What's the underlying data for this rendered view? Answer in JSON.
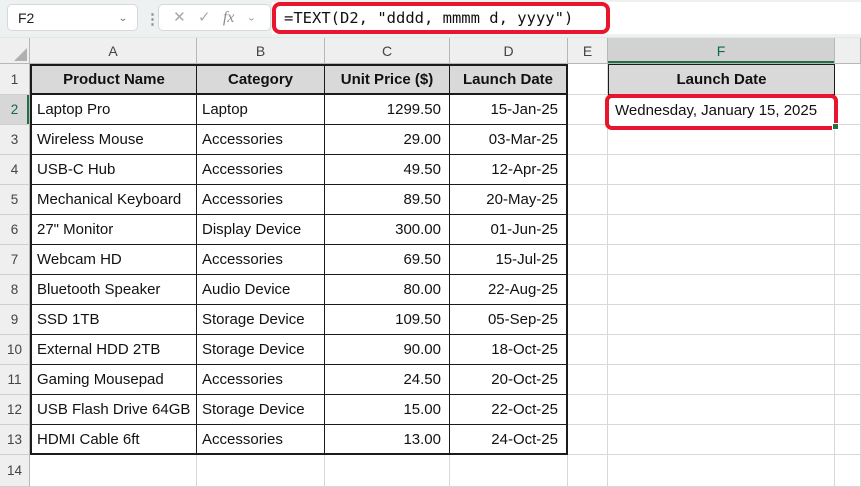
{
  "colors": {
    "annotation_red": "#e8152d",
    "selection_green": "#1f7246",
    "selected_header_text": "#0f6b43",
    "table_header_fill": "#d9d9d9"
  },
  "formula_bar": {
    "name_box_value": "F2",
    "formula": "=TEXT(D2, \"dddd, mmmm d, yyyy\")",
    "icons": {
      "name_dropdown": "⌄",
      "kebab": "⋮",
      "cancel": "✕",
      "enter": "✓",
      "fx": "fx",
      "fx_dropdown": "⌄"
    }
  },
  "sheet": {
    "column_letters": [
      "A",
      "B",
      "C",
      "D",
      "E",
      "F"
    ],
    "selected_column": "F",
    "selected_row": 2,
    "row_numbers": [
      "1",
      "2",
      "3",
      "4",
      "5",
      "6",
      "7",
      "8",
      "9",
      "10",
      "11",
      "12",
      "13",
      "14"
    ],
    "table": {
      "headers": [
        "Product Name",
        "Category",
        "Unit Price ($)",
        "Launch Date"
      ],
      "rows": [
        {
          "product": "Laptop Pro",
          "category": "Laptop",
          "price": "1299.50",
          "date": "15-Jan-25"
        },
        {
          "product": "Wireless Mouse",
          "category": "Accessories",
          "price": "29.00",
          "date": "03-Mar-25"
        },
        {
          "product": "USB-C Hub",
          "category": "Accessories",
          "price": "49.50",
          "date": "12-Apr-25"
        },
        {
          "product": "Mechanical Keyboard",
          "category": "Accessories",
          "price": "89.50",
          "date": "20-May-25"
        },
        {
          "product": "27\" Monitor",
          "category": "Display Device",
          "price": "300.00",
          "date": "01-Jun-25"
        },
        {
          "product": "Webcam HD",
          "category": "Accessories",
          "price": "69.50",
          "date": "15-Jul-25"
        },
        {
          "product": "Bluetooth Speaker",
          "category": "Audio Device",
          "price": "80.00",
          "date": "22-Aug-25"
        },
        {
          "product": "SSD 1TB",
          "category": "Storage Device",
          "price": "109.50",
          "date": "05-Sep-25"
        },
        {
          "product": "External HDD 2TB",
          "category": "Storage Device",
          "price": "90.00",
          "date": "18-Oct-25"
        },
        {
          "product": "Gaming Mousepad",
          "category": "Accessories",
          "price": "24.50",
          "date": "20-Oct-25"
        },
        {
          "product": "USB Flash Drive 64GB",
          "category": "Storage Device",
          "price": "15.00",
          "date": "22-Oct-25"
        },
        {
          "product": "HDMI Cable 6ft",
          "category": "Accessories",
          "price": "13.00",
          "date": "24-Oct-25"
        }
      ]
    },
    "result_column": {
      "header": "Launch Date",
      "value": "Wednesday, January 15, 2025"
    }
  }
}
